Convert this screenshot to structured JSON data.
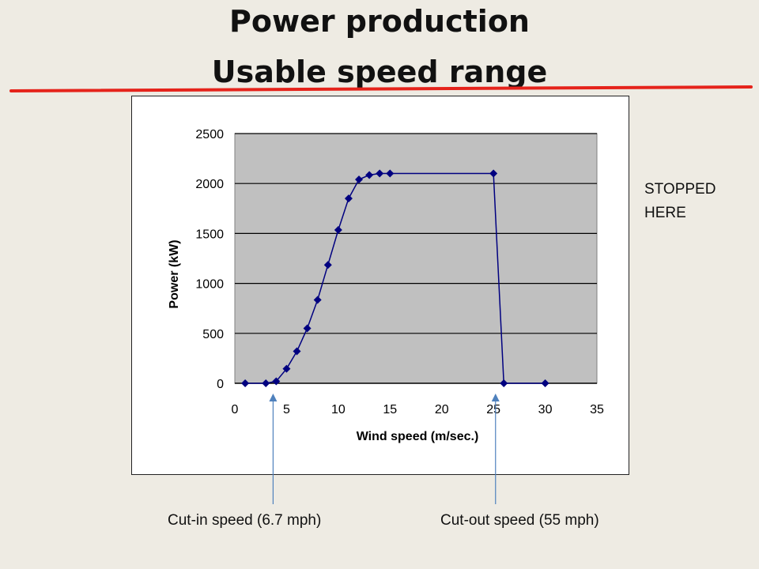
{
  "slide": {
    "title_line1": "Power production",
    "title_line2": "Usable speed range",
    "accent_line_color": "#e5231b",
    "side_note_line1": "STOPPED",
    "side_note_line2": "HERE"
  },
  "annotations": {
    "cut_in": {
      "label": "Cut-in speed (6.7 mph)",
      "x": 3.7
    },
    "cut_out": {
      "label": "Cut-out speed (55 mph)",
      "x": 25.2
    },
    "arrow_color": "#4f81bd"
  },
  "chart_data": {
    "type": "line",
    "title": "",
    "xlabel": "Wind speed (m/sec.)",
    "ylabel": "Power (kW)",
    "xlim": [
      0,
      35
    ],
    "ylim": [
      0,
      2500
    ],
    "xticks": [
      0,
      5,
      10,
      15,
      20,
      25,
      30,
      35
    ],
    "yticks": [
      0,
      500,
      1000,
      1500,
      2000,
      2500
    ],
    "grid": "horizontal",
    "plot_background": "#c0c0c0",
    "series": [
      {
        "color": "#000080",
        "marker": "diamond",
        "x": [
          1,
          3,
          4,
          5,
          6,
          7,
          8,
          9,
          10,
          11,
          12,
          13,
          14,
          15,
          25,
          26,
          30
        ],
        "y": [
          0,
          0,
          20,
          145,
          320,
          550,
          835,
          1185,
          1535,
          1850,
          2040,
          2085,
          2100,
          2100,
          2100,
          0,
          0
        ]
      }
    ]
  }
}
